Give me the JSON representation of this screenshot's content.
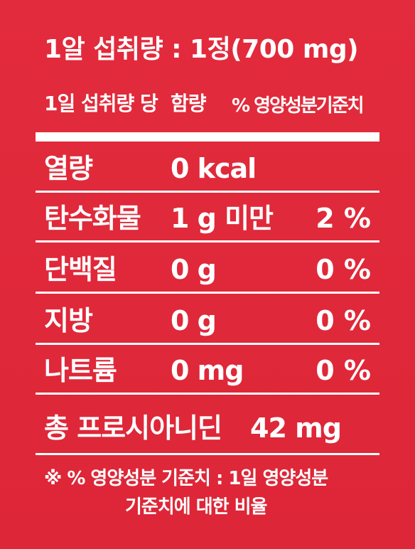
{
  "serving": {
    "text": "1알 섭취량 : 1정(700 mg)"
  },
  "header": {
    "per_serving": "1일 섭취량 당",
    "content": "함량",
    "dv": "% 영양성분기준치"
  },
  "nutrients": [
    {
      "name": "열량",
      "amount": "0 kcal",
      "percent": ""
    },
    {
      "name": "탄수화물",
      "amount": "1 g 미만",
      "percent": "2 %"
    },
    {
      "name": "단백질",
      "amount": "0 g",
      "percent": "0 %"
    },
    {
      "name": "지방",
      "amount": "0 g",
      "percent": "0 %"
    },
    {
      "name": "나트륨",
      "amount": "0 mg",
      "percent": "0 %"
    }
  ],
  "extra": {
    "name": "총 프로시아니딘",
    "amount": "42 mg"
  },
  "footnote": {
    "line1": "※ % 영양성분 기준치 : 1일 영양성분",
    "line2": "기준치에 대한 비율"
  },
  "colors": {
    "background": "#e0283a",
    "text": "#ffffff"
  }
}
